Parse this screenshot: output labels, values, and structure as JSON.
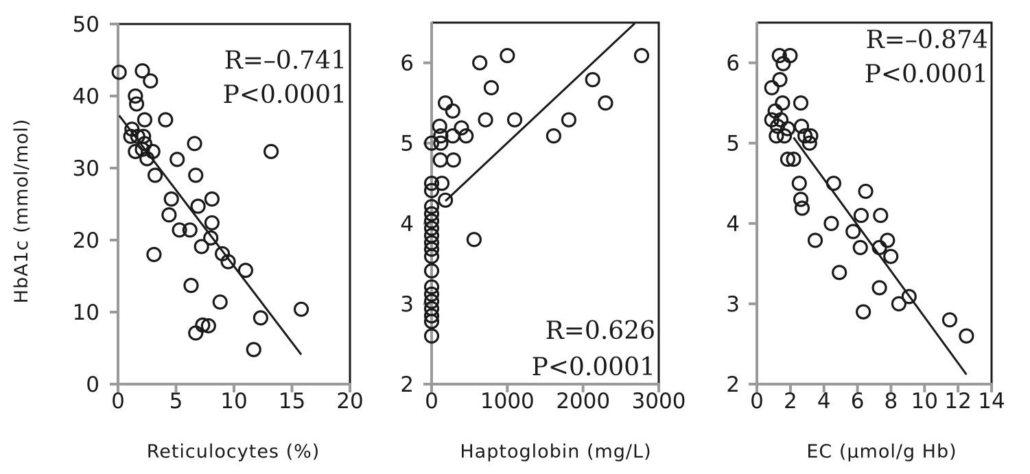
{
  "chart_data": [
    {
      "type": "scatter",
      "xlabel": "Reticulocytes (%)",
      "ylabel": "HbA1c (mmol/mol)",
      "xlim": [
        0,
        20
      ],
      "ylim": [
        0,
        50
      ],
      "xticks": [
        0,
        5,
        10,
        15,
        20
      ],
      "yticks": [
        0,
        10,
        20,
        30,
        40,
        50
      ],
      "grid": false,
      "annotation": [
        "R=–0.741",
        "P<0.0001"
      ],
      "annotation_position": "top-right",
      "regression_line": [
        [
          0.1,
          37.3
        ],
        [
          15.8,
          4.1
        ]
      ],
      "points": [
        [
          0.1,
          43.3
        ],
        [
          2.1,
          43.5
        ],
        [
          2.8,
          42.1
        ],
        [
          1.5,
          40.0
        ],
        [
          1.6,
          38.9
        ],
        [
          2.3,
          36.7
        ],
        [
          4.1,
          36.7
        ],
        [
          1.2,
          35.4
        ],
        [
          1.1,
          34.4
        ],
        [
          1.7,
          34.4
        ],
        [
          2.2,
          34.4
        ],
        [
          2.3,
          33.4
        ],
        [
          1.5,
          32.3
        ],
        [
          2.1,
          32.6
        ],
        [
          3.0,
          32.3
        ],
        [
          2.5,
          31.3
        ],
        [
          6.6,
          33.4
        ],
        [
          13.2,
          32.3
        ],
        [
          5.1,
          31.2
        ],
        [
          3.2,
          29.0
        ],
        [
          6.7,
          29.0
        ],
        [
          4.6,
          25.7
        ],
        [
          8.1,
          25.7
        ],
        [
          6.9,
          24.7
        ],
        [
          4.4,
          23.5
        ],
        [
          8.1,
          22.4
        ],
        [
          5.3,
          21.4
        ],
        [
          6.2,
          21.4
        ],
        [
          8.0,
          20.3
        ],
        [
          7.2,
          19.1
        ],
        [
          3.1,
          18.0
        ],
        [
          9.0,
          18.1
        ],
        [
          9.5,
          17.0
        ],
        [
          11.0,
          15.8
        ],
        [
          6.3,
          13.7
        ],
        [
          8.8,
          11.4
        ],
        [
          12.3,
          9.2
        ],
        [
          15.8,
          10.4
        ],
        [
          7.3,
          8.2
        ],
        [
          7.8,
          8.1
        ],
        [
          6.7,
          7.1
        ],
        [
          11.7,
          4.8
        ]
      ]
    },
    {
      "type": "scatter",
      "xlabel": "Haptoglobin (mg/L)",
      "ylabel": "",
      "xlim": [
        0,
        3000
      ],
      "ylim": [
        2,
        6.5
      ],
      "xticks": [
        0,
        1000,
        2000,
        3000
      ],
      "yticks": [
        2,
        3,
        4,
        5,
        6
      ],
      "grid": false,
      "annotation": [
        "R=0.626",
        "P<0.0001"
      ],
      "annotation_position": "bottom-right",
      "regression_line": [
        [
          182,
          4.28
        ],
        [
          2682,
          6.49
        ]
      ],
      "points": [
        [
          636,
          6.0
        ],
        [
          1000,
          6.09
        ],
        [
          2773,
          6.09
        ],
        [
          788,
          5.69
        ],
        [
          2127,
          5.79
        ],
        [
          2297,
          5.5
        ],
        [
          182,
          5.5
        ],
        [
          279,
          5.4
        ],
        [
          712,
          5.29
        ],
        [
          1097,
          5.29
        ],
        [
          1812,
          5.29
        ],
        [
          1612,
          5.09
        ],
        [
          106,
          5.21
        ],
        [
          121,
          5.09
        ],
        [
          279,
          5.09
        ],
        [
          394,
          5.19
        ],
        [
          455,
          5.09
        ],
        [
          0,
          5.0
        ],
        [
          121,
          5.0
        ],
        [
          115,
          4.79
        ],
        [
          288,
          4.79
        ],
        [
          0,
          4.5
        ],
        [
          136,
          4.5
        ],
        [
          0,
          4.41
        ],
        [
          182,
          4.29
        ],
        [
          561,
          3.8
        ],
        [
          0,
          4.21
        ],
        [
          0,
          4.12
        ],
        [
          0,
          4.03
        ],
        [
          0,
          3.94
        ],
        [
          0,
          3.85
        ],
        [
          0,
          3.76
        ],
        [
          0,
          3.68
        ],
        [
          0,
          3.59
        ],
        [
          0,
          3.41
        ],
        [
          0,
          3.21
        ],
        [
          0,
          3.12
        ],
        [
          0,
          3.03
        ],
        [
          0,
          2.94
        ],
        [
          0,
          2.85
        ],
        [
          0,
          2.78
        ],
        [
          0,
          2.6
        ]
      ]
    },
    {
      "type": "scatter",
      "xlabel": "EC (µmol/g Hb)",
      "ylabel": "",
      "xlim": [
        0,
        14
      ],
      "ylim": [
        2,
        6.5
      ],
      "xticks": [
        0,
        2,
        4,
        6,
        8,
        10,
        12,
        14
      ],
      "yticks": [
        2,
        3,
        4,
        5,
        6
      ],
      "grid": false,
      "annotation": [
        "R=–0.874",
        "P<0.0001"
      ],
      "annotation_position": "top-right",
      "regression_line": [
        [
          2.19,
          5.07
        ],
        [
          12.5,
          2.12
        ]
      ],
      "points": [
        [
          1.34,
          6.09
        ],
        [
          1.98,
          6.09
        ],
        [
          1.57,
          5.99
        ],
        [
          1.37,
          5.79
        ],
        [
          0.89,
          5.69
        ],
        [
          1.53,
          5.5
        ],
        [
          2.62,
          5.5
        ],
        [
          1.09,
          5.4
        ],
        [
          0.89,
          5.29
        ],
        [
          1.43,
          5.29
        ],
        [
          1.23,
          5.21
        ],
        [
          1.84,
          5.18
        ],
        [
          2.66,
          5.21
        ],
        [
          1.16,
          5.09
        ],
        [
          1.64,
          5.09
        ],
        [
          2.87,
          5.09
        ],
        [
          3.21,
          5.09
        ],
        [
          3.14,
          5.0
        ],
        [
          1.84,
          4.8
        ],
        [
          2.19,
          4.8
        ],
        [
          2.53,
          4.5
        ],
        [
          4.58,
          4.5
        ],
        [
          6.49,
          4.4
        ],
        [
          2.62,
          4.3
        ],
        [
          2.7,
          4.19
        ],
        [
          6.22,
          4.1
        ],
        [
          7.38,
          4.1
        ],
        [
          4.44,
          4.0
        ],
        [
          5.74,
          3.9
        ],
        [
          3.48,
          3.79
        ],
        [
          7.79,
          3.79
        ],
        [
          6.17,
          3.7
        ],
        [
          7.31,
          3.7
        ],
        [
          7.99,
          3.59
        ],
        [
          4.92,
          3.39
        ],
        [
          7.31,
          3.2
        ],
        [
          9.08,
          3.09
        ],
        [
          8.47,
          3.0
        ],
        [
          6.35,
          2.9
        ],
        [
          11.5,
          2.8
        ],
        [
          12.5,
          2.6
        ]
      ]
    }
  ],
  "colors": {
    "axis": "#9a9a9a",
    "frame": "#1a1a1a",
    "marker": "#1a1a1a"
  }
}
